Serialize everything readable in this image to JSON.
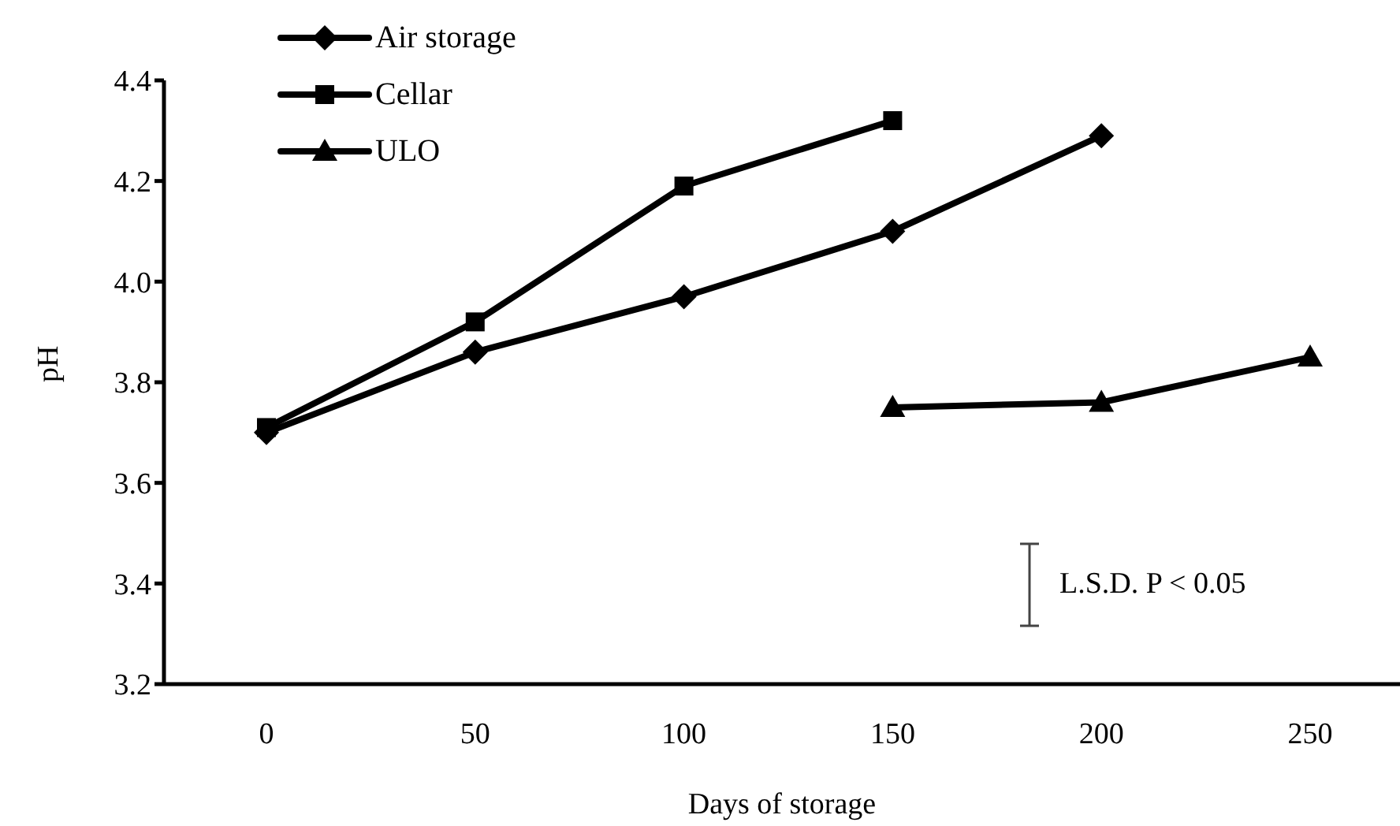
{
  "chart_data": {
    "type": "line",
    "xlabel": "Days of storage",
    "ylabel": "pH",
    "categories": [
      "0",
      "50",
      "100",
      "150",
      "200",
      "250"
    ],
    "series": [
      {
        "name": "Air storage",
        "color": "#000000",
        "marker": "diamond",
        "values": [
          3.7,
          3.86,
          3.97,
          4.1,
          4.29,
          null
        ]
      },
      {
        "name": "Cellar",
        "color": "#000000",
        "marker": "square",
        "values": [
          3.71,
          3.92,
          4.19,
          4.32,
          null,
          null
        ]
      },
      {
        "name": "ULO",
        "color": "#000000",
        "marker": "triangle",
        "values": [
          null,
          null,
          null,
          3.75,
          3.76,
          3.85
        ]
      }
    ],
    "ylim": [
      3.2,
      4.4
    ],
    "yticks": [
      3.2,
      3.4,
      3.6,
      3.8,
      {
        "value": 4,
        "label": "4.0"
      },
      4.2,
      4.4
    ],
    "grid": false,
    "legend": "top left",
    "line_style": "solid",
    "annotations": [
      "L.S.D. P < 0.05"
    ]
  }
}
